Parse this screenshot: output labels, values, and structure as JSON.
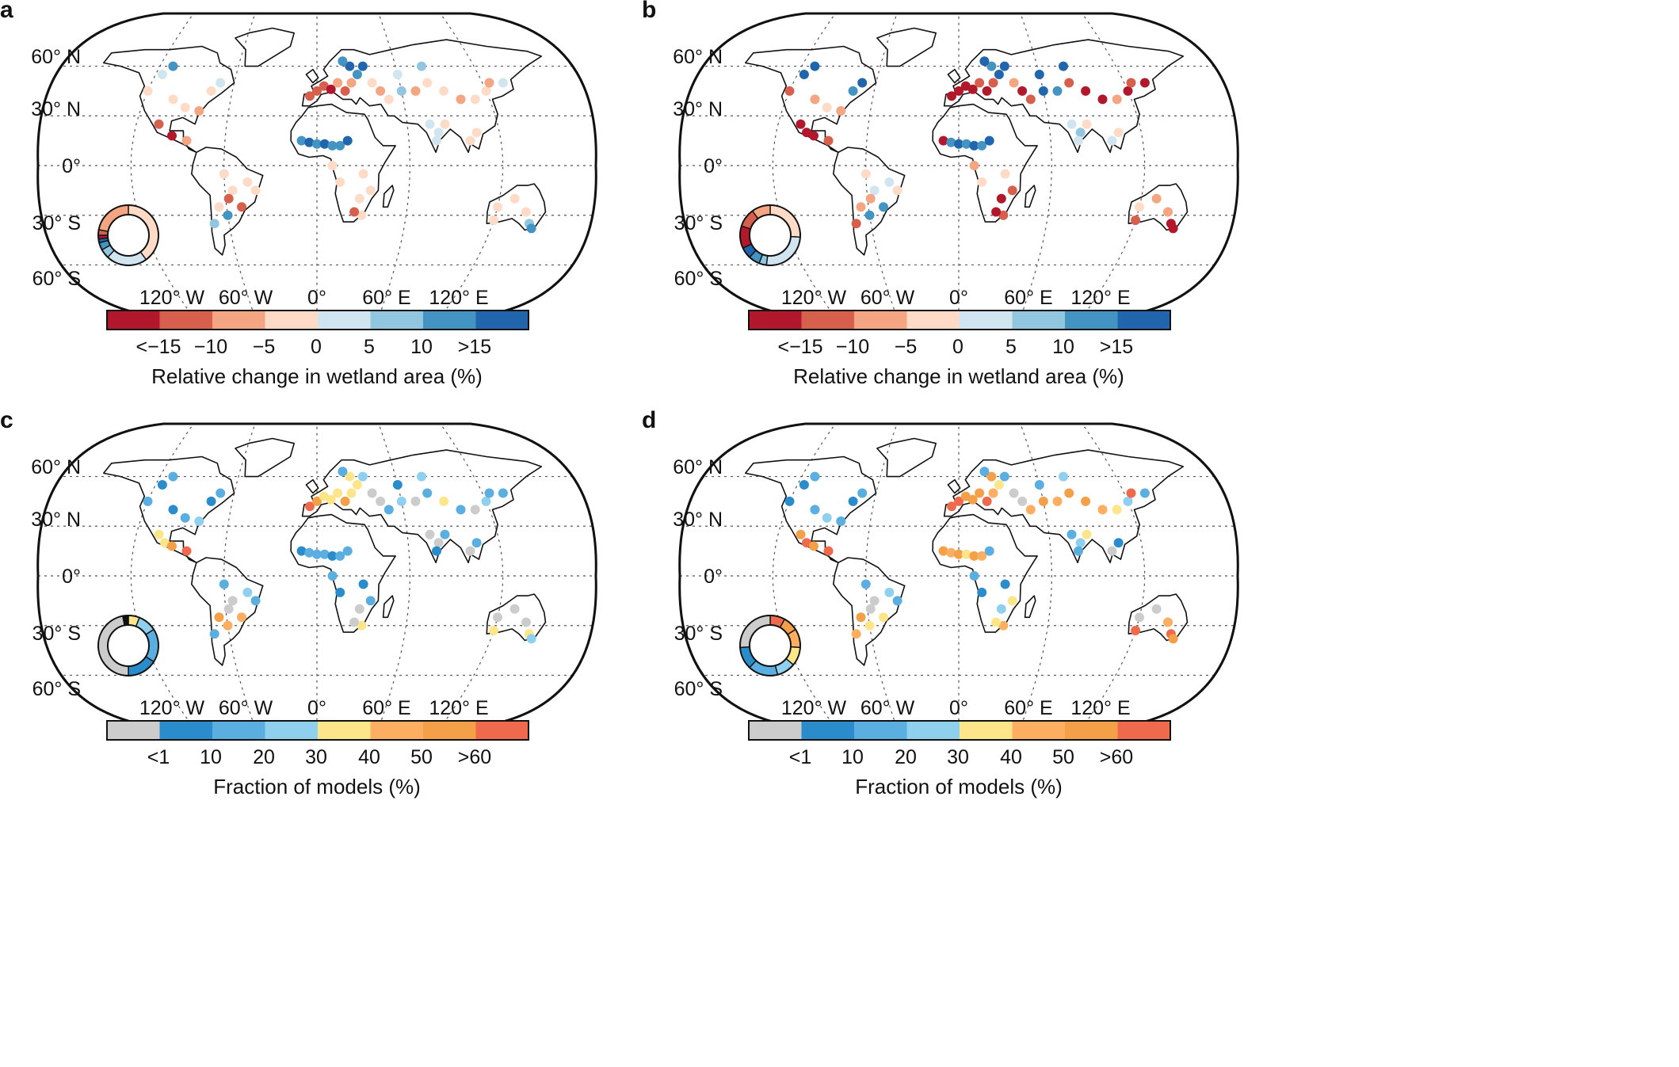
{
  "panels": [
    {
      "label": "a",
      "latitude_labels": [
        "60° N",
        "30° N",
        "0°",
        "30° S",
        "60° S"
      ],
      "longitude_labels": [
        "120° W",
        "60° W",
        "0°",
        "60° E",
        "120° E"
      ],
      "colorbar_ticks": [
        "<−15",
        "−10",
        "−5",
        "0",
        "5",
        "10",
        ">15"
      ],
      "colorbar_title": "Relative change in wetland area (%)",
      "colorbar_colors": [
        "#b2182b",
        "#d6604d",
        "#f4a582",
        "#fddbc7",
        "#d1e5f0",
        "#92c5de",
        "#4393c3",
        "#2166ac"
      ],
      "ring_segments": [
        {
          "color": "#fddbc7",
          "fraction": 0.4
        },
        {
          "color": "#d1e5f0",
          "fraction": 0.22
        },
        {
          "color": "#92c5de",
          "fraction": 0.05
        },
        {
          "color": "#4393c3",
          "fraction": 0.04
        },
        {
          "color": "#2166ac",
          "fraction": 0.02
        },
        {
          "color": "#b2182b",
          "fraction": 0.02
        },
        {
          "color": "#d6604d",
          "fraction": 0.03
        },
        {
          "color": "#f4a582",
          "fraction": 0.22
        }
      ]
    },
    {
      "label": "b",
      "latitude_labels": [
        "60° N",
        "30° N",
        "0°",
        "30° S",
        "60° S"
      ],
      "longitude_labels": [
        "120° W",
        "60° W",
        "0°",
        "60° E",
        "120° E"
      ],
      "colorbar_ticks": [
        "<−15",
        "−10",
        "−5",
        "0",
        "5",
        "10",
        ">15"
      ],
      "colorbar_title": "Relative change in wetland area (%)",
      "colorbar_colors": [
        "#b2182b",
        "#d6604d",
        "#f4a582",
        "#fddbc7",
        "#d1e5f0",
        "#92c5de",
        "#4393c3",
        "#2166ac"
      ],
      "ring_segments": [
        {
          "color": "#fddbc7",
          "fraction": 0.26
        },
        {
          "color": "#d1e5f0",
          "fraction": 0.26
        },
        {
          "color": "#92c5de",
          "fraction": 0.04
        },
        {
          "color": "#4393c3",
          "fraction": 0.06
        },
        {
          "color": "#2166ac",
          "fraction": 0.06
        },
        {
          "color": "#b2182b",
          "fraction": 0.12
        },
        {
          "color": "#d6604d",
          "fraction": 0.1
        },
        {
          "color": "#f4a582",
          "fraction": 0.1
        }
      ]
    },
    {
      "label": "c",
      "latitude_labels": [
        "60° N",
        "30° N",
        "0°",
        "30° S",
        "60° S"
      ],
      "longitude_labels": [
        "120° W",
        "60° W",
        "0°",
        "60° E",
        "120° E"
      ],
      "colorbar_ticks": [
        "<1",
        "10",
        "20",
        "30",
        "40",
        "50",
        ">60"
      ],
      "colorbar_title": "Fraction of models (%)",
      "colorbar_colors": [
        "#cccccc",
        "#2b8ccb",
        "#5aaee0",
        "#8fd0ef",
        "#fde68a",
        "#fdae61",
        "#f4a049",
        "#ef6a4c"
      ],
      "ring_segments": [
        {
          "color": "#fde68a",
          "fraction": 0.06
        },
        {
          "color": "#8fd0ef",
          "fraction": 0.1
        },
        {
          "color": "#5aaee0",
          "fraction": 0.18
        },
        {
          "color": "#2b8ccb",
          "fraction": 0.16
        },
        {
          "color": "#cccccc",
          "fraction": 0.47
        },
        {
          "color": "#111111",
          "fraction": 0.03
        }
      ]
    },
    {
      "label": "d",
      "latitude_labels": [
        "60° N",
        "30° N",
        "0°",
        "30° S",
        "60° S"
      ],
      "longitude_labels": [
        "120° W",
        "60° W",
        "0°",
        "60° E",
        "120° E"
      ],
      "colorbar_ticks": [
        "<1",
        "10",
        "20",
        "30",
        "40",
        "50",
        ">60"
      ],
      "colorbar_title": "Fraction of models (%)",
      "colorbar_colors": [
        "#cccccc",
        "#2b8ccb",
        "#5aaee0",
        "#8fd0ef",
        "#fde68a",
        "#fdae61",
        "#f4a049",
        "#ef6a4c"
      ],
      "ring_segments": [
        {
          "color": "#ef6a4c",
          "fraction": 0.08
        },
        {
          "color": "#f4a049",
          "fraction": 0.08
        },
        {
          "color": "#fdae61",
          "fraction": 0.1
        },
        {
          "color": "#fde68a",
          "fraction": 0.1
        },
        {
          "color": "#8fd0ef",
          "fraction": 0.1
        },
        {
          "color": "#5aaee0",
          "fraction": 0.16
        },
        {
          "color": "#2b8ccb",
          "fraction": 0.12
        },
        {
          "color": "#cccccc",
          "fraction": 0.26
        }
      ]
    }
  ]
}
